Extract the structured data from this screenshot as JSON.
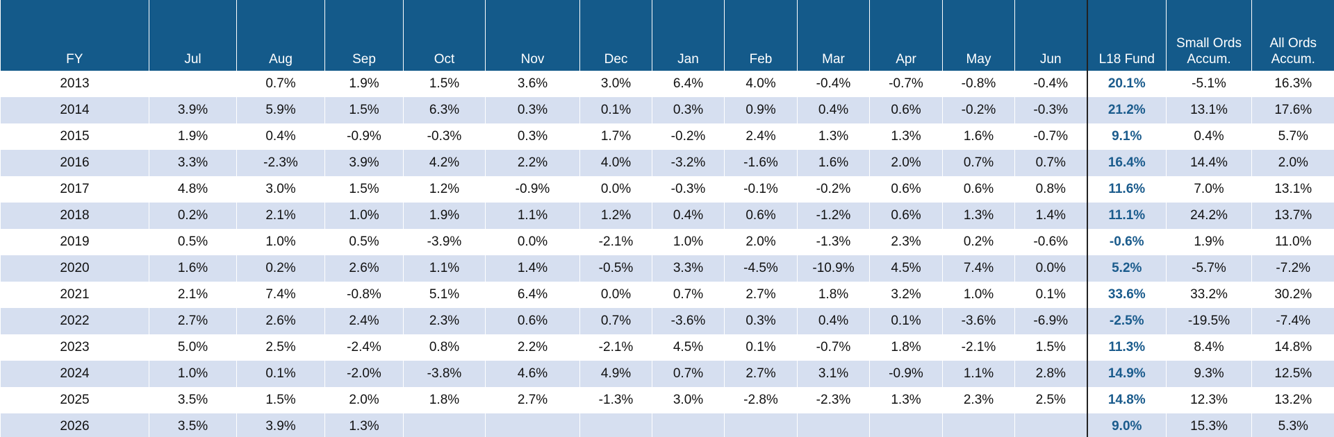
{
  "table": {
    "header": [
      "FY",
      "Jul",
      "Aug",
      "Sep",
      "Oct",
      "Nov",
      "Dec",
      "Jan",
      "Feb",
      "Mar",
      "Apr",
      "May",
      "Jun",
      "L18 Fund",
      "Small Ords Accum.",
      "All Ords Accum."
    ],
    "rows": [
      [
        "2013",
        null,
        "0.7%",
        "1.9%",
        "1.5%",
        "3.6%",
        "3.0%",
        "6.4%",
        "4.0%",
        "-0.4%",
        "-0.7%",
        "-0.8%",
        "-0.4%",
        "20.1%",
        "-5.1%",
        "16.3%"
      ],
      [
        "2014",
        "3.9%",
        "5.9%",
        "1.5%",
        "6.3%",
        "0.3%",
        "0.1%",
        "0.3%",
        "0.9%",
        "0.4%",
        "0.6%",
        "-0.2%",
        "-0.3%",
        "21.2%",
        "13.1%",
        "17.6%"
      ],
      [
        "2015",
        "1.9%",
        "0.4%",
        "-0.9%",
        "-0.3%",
        "0.3%",
        "1.7%",
        "-0.2%",
        "2.4%",
        "1.3%",
        "1.3%",
        "1.6%",
        "-0.7%",
        "9.1%",
        "0.4%",
        "5.7%"
      ],
      [
        "2016",
        "3.3%",
        "-2.3%",
        "3.9%",
        "4.2%",
        "2.2%",
        "4.0%",
        "-3.2%",
        "-1.6%",
        "1.6%",
        "2.0%",
        "0.7%",
        "0.7%",
        "16.4%",
        "14.4%",
        "2.0%"
      ],
      [
        "2017",
        "4.8%",
        "3.0%",
        "1.5%",
        "1.2%",
        "-0.9%",
        "0.0%",
        "-0.3%",
        "-0.1%",
        "-0.2%",
        "0.6%",
        "0.6%",
        "0.8%",
        "11.6%",
        "7.0%",
        "13.1%"
      ],
      [
        "2018",
        "0.2%",
        "2.1%",
        "1.0%",
        "1.9%",
        "1.1%",
        "1.2%",
        "0.4%",
        "0.6%",
        "-1.2%",
        "0.6%",
        "1.3%",
        "1.4%",
        "11.1%",
        "24.2%",
        "13.7%"
      ],
      [
        "2019",
        "0.5%",
        "1.0%",
        "0.5%",
        "-3.9%",
        "0.0%",
        "-2.1%",
        "1.0%",
        "2.0%",
        "-1.3%",
        "2.3%",
        "0.2%",
        "-0.6%",
        "-0.6%",
        "1.9%",
        "11.0%"
      ],
      [
        "2020",
        "1.6%",
        "0.2%",
        "2.6%",
        "1.1%",
        "1.4%",
        "-0.5%",
        "3.3%",
        "-4.5%",
        "-10.9%",
        "4.5%",
        "7.4%",
        "0.0%",
        "5.2%",
        "-5.7%",
        "-7.2%"
      ],
      [
        "2021",
        "2.1%",
        "7.4%",
        "-0.8%",
        "5.1%",
        "6.4%",
        "0.0%",
        "0.7%",
        "2.7%",
        "1.8%",
        "3.2%",
        "1.0%",
        "0.1%",
        "33.6%",
        "33.2%",
        "30.2%"
      ],
      [
        "2022",
        "2.7%",
        "2.6%",
        "2.4%",
        "2.3%",
        "0.6%",
        "0.7%",
        "-3.6%",
        "0.3%",
        "0.4%",
        "0.1%",
        "-3.6%",
        "-6.9%",
        "-2.5%",
        "-19.5%",
        "-7.4%"
      ],
      [
        "2023",
        "5.0%",
        "2.5%",
        "-2.4%",
        "0.8%",
        "2.2%",
        "-2.1%",
        "4.5%",
        "0.1%",
        "-0.7%",
        "1.8%",
        "-2.1%",
        "1.5%",
        "11.3%",
        "8.4%",
        "14.8%"
      ],
      [
        "2024",
        "1.0%",
        "0.1%",
        "-2.0%",
        "-3.8%",
        "4.6%",
        "4.9%",
        "0.7%",
        "2.7%",
        "3.1%",
        "-0.9%",
        "1.1%",
        "2.8%",
        "14.9%",
        "9.3%",
        "12.5%"
      ],
      [
        "2025",
        "3.5%",
        "1.5%",
        "2.0%",
        "1.8%",
        "2.7%",
        "-1.3%",
        "3.0%",
        "-2.8%",
        "-2.3%",
        "1.3%",
        "2.3%",
        "2.5%",
        "14.8%",
        "12.3%",
        "13.2%"
      ],
      [
        "2026",
        "3.5%",
        "3.9%",
        "1.3%",
        null,
        null,
        null,
        null,
        null,
        null,
        null,
        null,
        null,
        "9.0%",
        "15.3%",
        "5.3%"
      ]
    ]
  }
}
